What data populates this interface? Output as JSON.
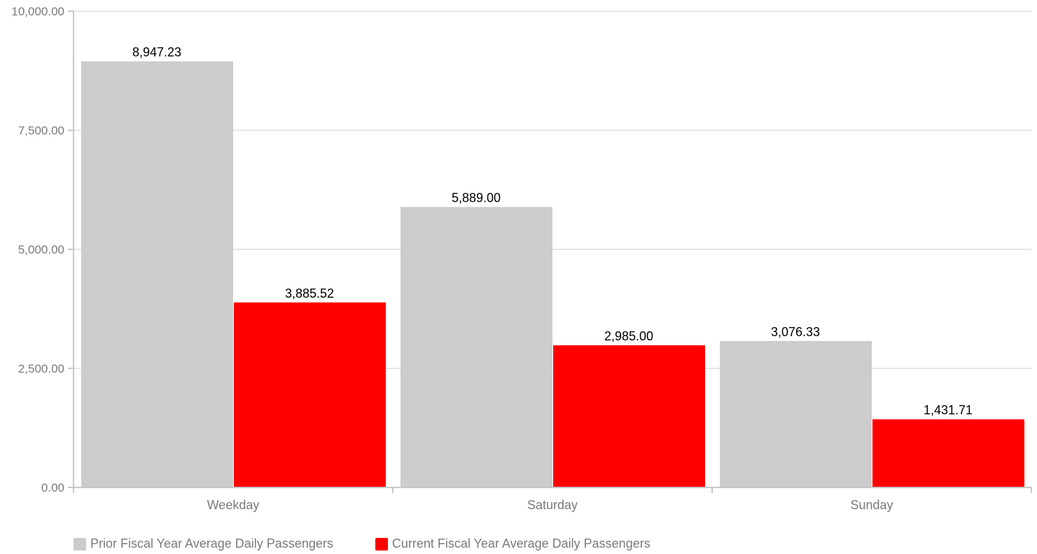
{
  "chart_data": {
    "type": "bar",
    "categories": [
      "Weekday",
      "Saturday",
      "Sunday"
    ],
    "series": [
      {
        "name": "Prior Fiscal Year Average Daily Passengers",
        "values": [
          8947.23,
          5889.0,
          3076.33
        ],
        "labels": [
          "8,947.23",
          "5,889.00",
          "3,076.33"
        ],
        "color": "#cccccc"
      },
      {
        "name": "Current Fiscal Year Average Daily Passengers",
        "values": [
          3885.52,
          2985.0,
          1431.71
        ],
        "labels": [
          "3,885.52",
          "2,985.00",
          "1,431.71"
        ],
        "color": "#ff0000"
      }
    ],
    "y_ticks": [
      0,
      2500,
      5000,
      7500,
      10000
    ],
    "y_tick_labels": [
      "0.00",
      "2,500.00",
      "5,000.00",
      "7,500.00",
      "10,000.00"
    ],
    "ylim": [
      0,
      10000
    ],
    "title": "",
    "xlabel": "",
    "ylabel": "",
    "grid": true,
    "legend_position": "bottom-left"
  }
}
